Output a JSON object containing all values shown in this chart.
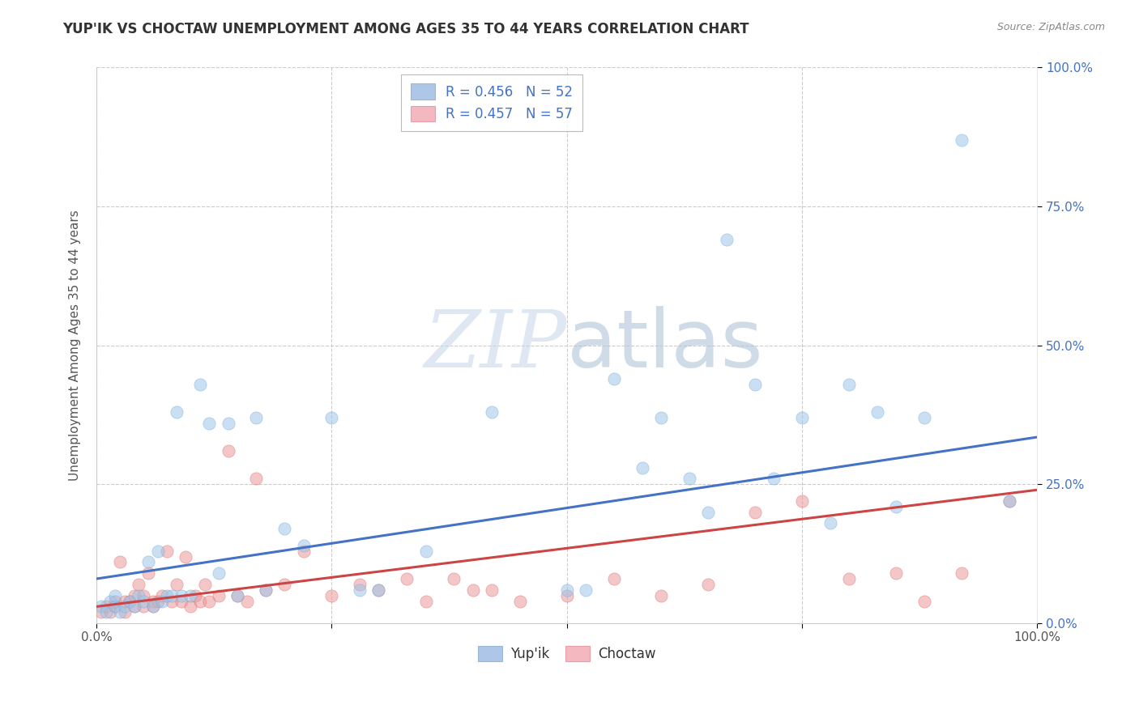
{
  "title": "YUP'IK VS CHOCTAW UNEMPLOYMENT AMONG AGES 35 TO 44 YEARS CORRELATION CHART",
  "source": "Source: ZipAtlas.com",
  "ylabel": "Unemployment Among Ages 35 to 44 years",
  "xlim": [
    0.0,
    1.0
  ],
  "ylim": [
    0.0,
    1.0
  ],
  "xticks": [
    0.0,
    0.25,
    0.5,
    0.75,
    1.0
  ],
  "yticks": [
    0.0,
    0.25,
    0.5,
    0.75,
    1.0
  ],
  "xtick_labels": [
    "0.0%",
    "",
    "",
    "",
    "100.0%"
  ],
  "ytick_labels_right": [
    "0.0%",
    "25.0%",
    "50.0%",
    "75.0%",
    "100.0%"
  ],
  "series": [
    {
      "name": "Yup'ik",
      "R": 0.456,
      "N": 52,
      "color": "#9fc5e8",
      "edge_color": "#6fa8dc",
      "line_color": "#4472c4",
      "x": [
        0.005,
        0.01,
        0.015,
        0.02,
        0.02,
        0.025,
        0.03,
        0.035,
        0.04,
        0.045,
        0.05,
        0.055,
        0.06,
        0.065,
        0.07,
        0.075,
        0.08,
        0.085,
        0.09,
        0.1,
        0.11,
        0.12,
        0.13,
        0.14,
        0.15,
        0.17,
        0.18,
        0.2,
        0.22,
        0.25,
        0.28,
        0.3,
        0.35,
        0.42,
        0.5,
        0.52,
        0.55,
        0.58,
        0.6,
        0.63,
        0.65,
        0.67,
        0.7,
        0.72,
        0.75,
        0.78,
        0.8,
        0.83,
        0.85,
        0.88,
        0.92,
        0.97
      ],
      "y": [
        0.03,
        0.02,
        0.04,
        0.03,
        0.05,
        0.02,
        0.03,
        0.04,
        0.03,
        0.05,
        0.04,
        0.11,
        0.03,
        0.13,
        0.04,
        0.05,
        0.05,
        0.38,
        0.05,
        0.05,
        0.43,
        0.36,
        0.09,
        0.36,
        0.05,
        0.37,
        0.06,
        0.17,
        0.14,
        0.37,
        0.06,
        0.06,
        0.13,
        0.38,
        0.06,
        0.06,
        0.44,
        0.28,
        0.37,
        0.26,
        0.2,
        0.69,
        0.43,
        0.26,
        0.37,
        0.18,
        0.43,
        0.38,
        0.21,
        0.37,
        0.87,
        0.22
      ],
      "trend_x": [
        0.0,
        1.0
      ],
      "trend_y": [
        0.08,
        0.335
      ]
    },
    {
      "name": "Choctaw",
      "R": 0.457,
      "N": 57,
      "color": "#ea9999",
      "edge_color": "#e06666",
      "line_color": "#cc4444",
      "x": [
        0.005,
        0.01,
        0.015,
        0.02,
        0.02,
        0.025,
        0.03,
        0.03,
        0.035,
        0.04,
        0.04,
        0.045,
        0.05,
        0.05,
        0.055,
        0.06,
        0.06,
        0.065,
        0.07,
        0.075,
        0.08,
        0.085,
        0.09,
        0.095,
        0.1,
        0.105,
        0.11,
        0.115,
        0.12,
        0.13,
        0.14,
        0.15,
        0.16,
        0.17,
        0.18,
        0.2,
        0.22,
        0.25,
        0.28,
        0.3,
        0.33,
        0.35,
        0.38,
        0.4,
        0.42,
        0.45,
        0.5,
        0.55,
        0.6,
        0.65,
        0.7,
        0.75,
        0.8,
        0.85,
        0.88,
        0.92,
        0.97
      ],
      "y": [
        0.02,
        0.03,
        0.02,
        0.03,
        0.04,
        0.11,
        0.02,
        0.04,
        0.04,
        0.03,
        0.05,
        0.07,
        0.03,
        0.05,
        0.09,
        0.03,
        0.04,
        0.04,
        0.05,
        0.13,
        0.04,
        0.07,
        0.04,
        0.12,
        0.03,
        0.05,
        0.04,
        0.07,
        0.04,
        0.05,
        0.31,
        0.05,
        0.04,
        0.26,
        0.06,
        0.07,
        0.13,
        0.05,
        0.07,
        0.06,
        0.08,
        0.04,
        0.08,
        0.06,
        0.06,
        0.04,
        0.05,
        0.08,
        0.05,
        0.07,
        0.2,
        0.22,
        0.08,
        0.09,
        0.04,
        0.09,
        0.22
      ],
      "trend_x": [
        0.0,
        1.0
      ],
      "trend_y": [
        0.03,
        0.24
      ]
    }
  ],
  "watermark_zip": "ZIP",
  "watermark_atlas": "atlas",
  "background_color": "#ffffff",
  "grid_color": "#cccccc",
  "title_color": "#333333",
  "title_fontsize": 12,
  "axis_label_color": "#555555",
  "tick_color_gray": "#555555",
  "tick_color_blue": "#4472c4",
  "legend_text_color": "#4472c4",
  "marker_size": 120,
  "marker_alpha": 0.55,
  "line_width": 2.2
}
